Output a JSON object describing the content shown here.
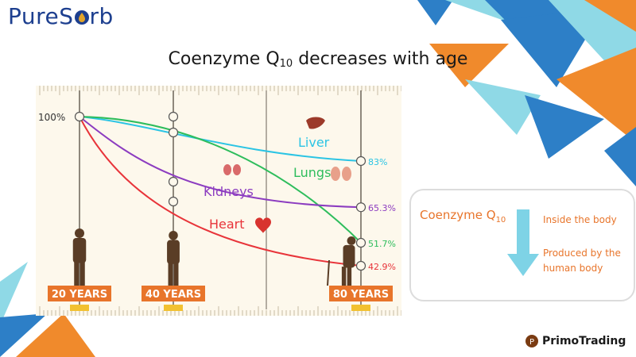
{
  "logo": {
    "pre": "PureS",
    "post": "rb"
  },
  "title": {
    "main": "Coenzyme Q",
    "sub": "10",
    "rest": " decreases with age"
  },
  "colors": {
    "orange": "#f08a2c",
    "blue": "#2d7fc7",
    "cyan": "#8fd9e6",
    "navy": "#1d3f8f"
  },
  "chart_data": {
    "type": "line",
    "x_labels": [
      "20 YEARS",
      "40 YEARS",
      "80 YEARS"
    ],
    "x": [
      20,
      40,
      80
    ],
    "y_start_label": "100%",
    "series": [
      {
        "name": "Liver",
        "color": "#2bc4e4",
        "start": 100,
        "end": 83,
        "end_label": "83%",
        "icon": "liver-icon"
      },
      {
        "name": "Lungs",
        "color": "#2ebd5c",
        "start": 100,
        "end": 51.7,
        "end_label": "51.7%",
        "icon": "lungs-icon"
      },
      {
        "name": "Kidneys",
        "color": "#8c3cc0",
        "start": 100,
        "end": 65.3,
        "end_label": "65.3%",
        "icon": "kidneys-icon"
      },
      {
        "name": "Heart",
        "color": "#e8343a",
        "start": 100,
        "end": 42.9,
        "end_label": "42.9%",
        "icon": "heart-icon"
      }
    ]
  },
  "side_panel": {
    "coq_main": "Coenzyme Q",
    "coq_sub": "10",
    "inside": "Inside the body",
    "produced": "Produced by the human body",
    "arrow_color": "#7ed3e6"
  },
  "brand": {
    "name": "PrimoTrading"
  }
}
